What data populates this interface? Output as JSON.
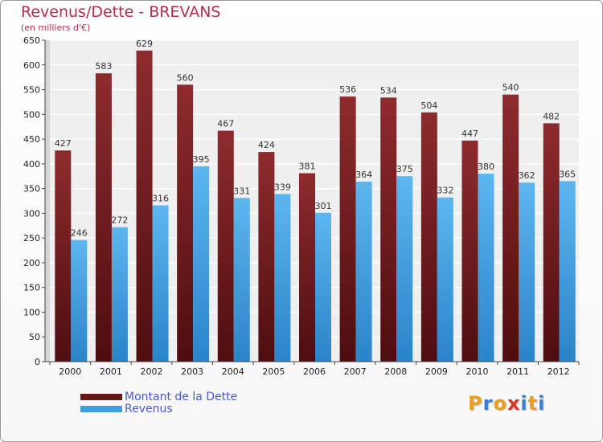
{
  "chart_data": {
    "type": "bar",
    "title": "Revenus/Dette - BREVANS",
    "subtitle": "(en milliers d'€)",
    "categories": [
      "2000",
      "2001",
      "2002",
      "2003",
      "2004",
      "2005",
      "2006",
      "2007",
      "2008",
      "2009",
      "2010",
      "2011",
      "2012"
    ],
    "series": [
      {
        "name": "Montant de la Dette",
        "color": "#7a1e22",
        "values": [
          427,
          583,
          629,
          560,
          467,
          424,
          381,
          536,
          534,
          504,
          447,
          540,
          482
        ]
      },
      {
        "name": "Revenus",
        "color": "#3d9ee0",
        "values": [
          246,
          272,
          316,
          395,
          331,
          339,
          301,
          364,
          375,
          332,
          380,
          362,
          365
        ]
      }
    ],
    "ylim": [
      0,
      650
    ],
    "yticks": [
      0,
      50,
      100,
      150,
      200,
      250,
      300,
      350,
      400,
      450,
      500,
      550,
      600,
      650
    ],
    "grid": true,
    "legend_position": "bottom-left"
  },
  "logo": {
    "text": "Proxiti",
    "letter_colors": [
      "#e8a020",
      "#3a7fd0",
      "#e8a020",
      "#d23a2a",
      "#3a7fd0",
      "#e8a020",
      "#3a7fd0"
    ]
  }
}
